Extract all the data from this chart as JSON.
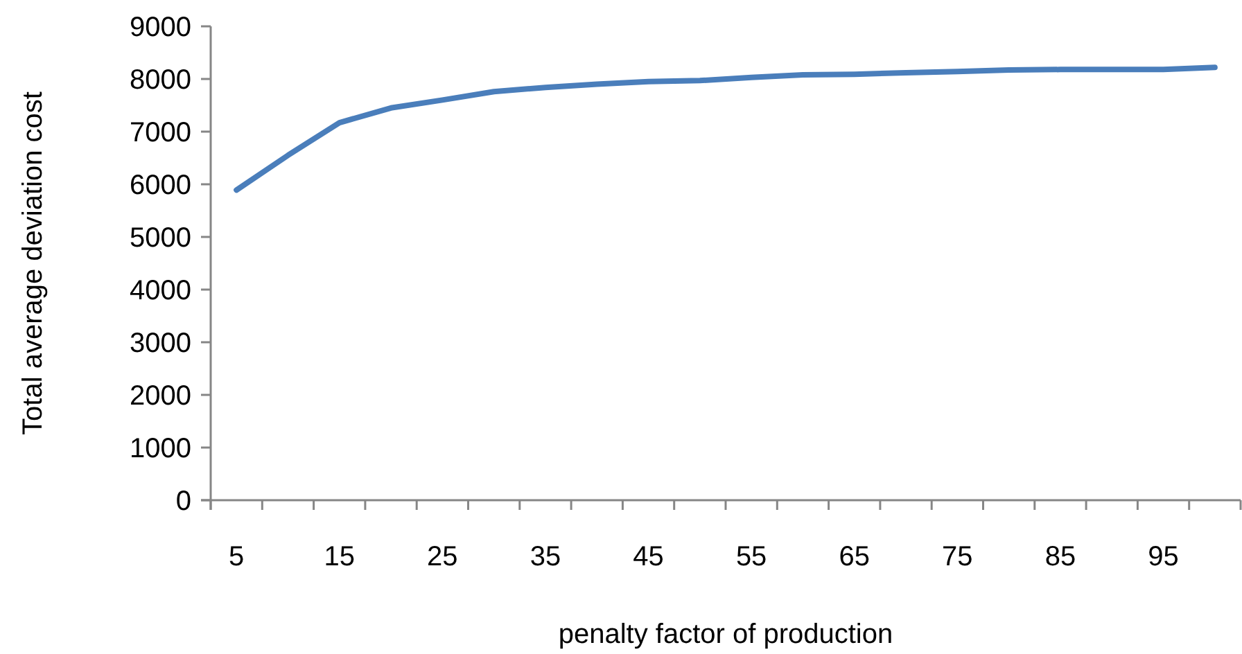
{
  "chart_data": {
    "type": "line",
    "xlabel": "penalty factor of production",
    "ylabel": "Total average deviation cost",
    "categories": [
      "5",
      null,
      "15",
      null,
      "25",
      null,
      "35",
      null,
      "45",
      null,
      "55",
      null,
      "65",
      null,
      "75",
      null,
      "85",
      null,
      "95",
      null
    ],
    "series": [
      {
        "color": "#4a7ebb",
        "values": [
          5890,
          6550,
          7170,
          7450,
          7600,
          7760,
          7840,
          7900,
          7950,
          7970,
          8030,
          8080,
          8090,
          8120,
          8140,
          8170,
          8180,
          8180,
          8180,
          8220
        ]
      }
    ],
    "ylim": [
      0,
      9000
    ],
    "yticks": [
      0,
      1000,
      2000,
      3000,
      4000,
      5000,
      6000,
      7000,
      8000,
      9000
    ],
    "grid": false,
    "marker": "none",
    "line_style": "solid"
  }
}
